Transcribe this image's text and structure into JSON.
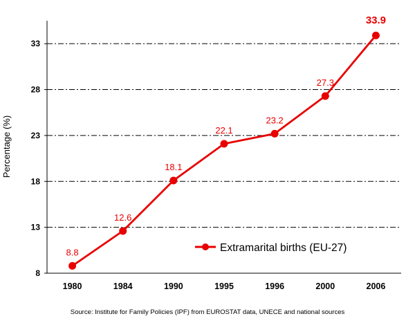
{
  "chart_data": {
    "type": "line",
    "categories": [
      "1980",
      "1984",
      "1990",
      "1995",
      "1996",
      "2000",
      "2006"
    ],
    "series": [
      {
        "name": "Extramarital births (EU-27)",
        "values": [
          8.8,
          12.6,
          18.1,
          22.1,
          23.2,
          27.3,
          33.9
        ]
      }
    ],
    "data_labels": [
      "8.8",
      "12.6",
      "18.1",
      "22.1",
      "23.2",
      "27.3",
      "33.9"
    ],
    "ylabel": "Percentage (%)",
    "xlabel": "",
    "yticks": [
      8,
      13,
      18,
      23,
      28,
      33
    ],
    "ylim": [
      8,
      35.5
    ],
    "grid": "horizontal dash-dot",
    "legend": "lower-right",
    "color": "#e80000"
  },
  "source": "Source: Institute for Family Policies (IPF) from EUROSTAT data, UNECE  and national sources"
}
